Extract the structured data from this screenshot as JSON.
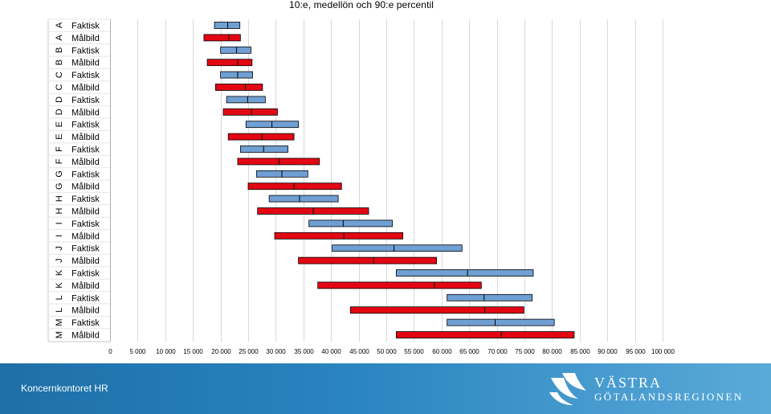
{
  "chart_data": {
    "type": "boxplot-horizontal",
    "title": "10:e, medellön och 90:e percentil",
    "xlim": [
      0,
      100000
    ],
    "xticks": [
      0,
      5000,
      10000,
      15000,
      20000,
      25000,
      30000,
      35000,
      40000,
      45000,
      50000,
      55000,
      60000,
      65000,
      70000,
      75000,
      80000,
      85000,
      90000,
      95000,
      100000
    ],
    "xtick_labels": [
      "0",
      "5 000",
      "10 000",
      "15 000",
      "20 000",
      "25 000",
      "30 000",
      "35 000",
      "40 000",
      "45 000",
      "50 000",
      "55 000",
      "60 000",
      "65 000",
      "70 000",
      "75 000",
      "80 000",
      "85 000",
      "90 000",
      "95 000",
      "100 000"
    ],
    "grid": "vertical",
    "series_colors": {
      "Faktisk": "#6f9fd3",
      "Målbild": "#e30613"
    },
    "rows": [
      {
        "group": "A",
        "series": "Faktisk",
        "p10": 18900,
        "mean": 21300,
        "p90": 23500
      },
      {
        "group": "A",
        "series": "Målbild",
        "p10": 17000,
        "mean": 21500,
        "p90": 23600
      },
      {
        "group": "B",
        "series": "Faktisk",
        "p10": 20000,
        "mean": 22900,
        "p90": 25500
      },
      {
        "group": "B",
        "series": "Målbild",
        "p10": 17600,
        "mean": 23100,
        "p90": 25700
      },
      {
        "group": "C",
        "series": "Faktisk",
        "p10": 20000,
        "mean": 23100,
        "p90": 25800
      },
      {
        "group": "C",
        "series": "Målbild",
        "p10": 19100,
        "mean": 24500,
        "p90": 27600
      },
      {
        "group": "D",
        "series": "Faktisk",
        "p10": 21100,
        "mean": 24900,
        "p90": 28100
      },
      {
        "group": "D",
        "series": "Målbild",
        "p10": 20500,
        "mean": 25600,
        "p90": 30300
      },
      {
        "group": "E",
        "series": "Faktisk",
        "p10": 24600,
        "mean": 29300,
        "p90": 34100
      },
      {
        "group": "E",
        "series": "Målbild",
        "p10": 21400,
        "mean": 27500,
        "p90": 33300
      },
      {
        "group": "F",
        "series": "Faktisk",
        "p10": 23600,
        "mean": 27800,
        "p90": 32200
      },
      {
        "group": "F",
        "series": "Målbild",
        "p10": 23100,
        "mean": 30600,
        "p90": 37900
      },
      {
        "group": "G",
        "series": "Faktisk",
        "p10": 26500,
        "mean": 31100,
        "p90": 35800
      },
      {
        "group": "G",
        "series": "Målbild",
        "p10": 25000,
        "mean": 33300,
        "p90": 41900
      },
      {
        "group": "H",
        "series": "Faktisk",
        "p10": 28800,
        "mean": 34300,
        "p90": 41300
      },
      {
        "group": "H",
        "series": "Målbild",
        "p10": 26700,
        "mean": 36800,
        "p90": 46800
      },
      {
        "group": "I",
        "series": "Faktisk",
        "p10": 36000,
        "mean": 42200,
        "p90": 51100
      },
      {
        "group": "I",
        "series": "Målbild",
        "p10": 29800,
        "mean": 42300,
        "p90": 53000
      },
      {
        "group": "J",
        "series": "Faktisk",
        "p10": 40200,
        "mean": 51400,
        "p90": 63700
      },
      {
        "group": "J",
        "series": "Målbild",
        "p10": 34100,
        "mean": 47700,
        "p90": 59100
      },
      {
        "group": "K",
        "series": "Faktisk",
        "p10": 51800,
        "mean": 64700,
        "p90": 76600
      },
      {
        "group": "K",
        "series": "Målbild",
        "p10": 37600,
        "mean": 58700,
        "p90": 67200
      },
      {
        "group": "L",
        "series": "Faktisk",
        "p10": 61000,
        "mean": 67700,
        "p90": 76400
      },
      {
        "group": "L",
        "series": "Målbild",
        "p10": 43500,
        "mean": 67800,
        "p90": 74900
      },
      {
        "group": "M",
        "series": "Faktisk",
        "p10": 61000,
        "mean": 69700,
        "p90": 80400
      },
      {
        "group": "M",
        "series": "Målbild",
        "p10": 51800,
        "mean": 70800,
        "p90": 84000
      }
    ]
  },
  "footer": {
    "org_text": "Koncernkontoret HR",
    "logo_line1": "VÄSTRA",
    "logo_line2": "GÖTALANDSREGIONEN"
  }
}
